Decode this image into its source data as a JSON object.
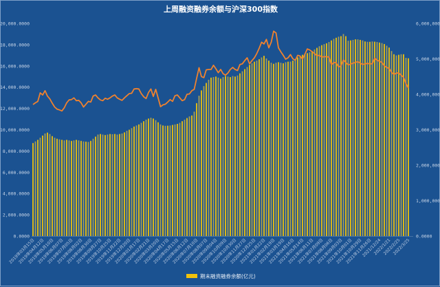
{
  "chart_data": {
    "type": "bar",
    "title": "上周融资融券余额与沪深300指数",
    "colors": {
      "background": "#1b5291",
      "bar": "#f2c20a",
      "bar_alt": "#a99f52",
      "line": "#f0822e",
      "text": "#c9d6e8"
    },
    "left_axis": {
      "ylim": [
        0,
        20000
      ],
      "ticks": [
        "0.0000",
        "2,000.0000",
        "4,000.0000",
        "6,000.0000",
        "8,000.0000",
        "10,000.0000",
        "12,000.0000",
        "14,000.0000",
        "16,000.0000",
        "18,000.0000",
        "20,000.0000"
      ]
    },
    "right_axis": {
      "ylim": [
        0,
        6000000
      ],
      "ticks": [
        "0.0000",
        "1,000,000.0000",
        "2,000,000.0000",
        "3,000,000.0000",
        "4,000,000.0000",
        "5,000,000.0000",
        "6,000,000.0000"
      ]
    },
    "x_tick_labels": [
      "2019年03月15日",
      "2019年04月12日",
      "2019年05月10日",
      "2019年06月07日",
      "2019年07月05日",
      "2019年08月02日",
      "2019年08月30日",
      "2019年09月27日",
      "2019年10月25日",
      "2019年11月22日",
      "2019年12月20日",
      "2020年01月17日",
      "2020年02月21日",
      "2020年03月20日",
      "2020年04月17日",
      "2020年05月15日",
      "2020年06月12日",
      "2020年07月10日",
      "2020年08月07日",
      "2020年09月04日",
      "2020年10月09日",
      "2020年10月30日",
      "2020年11月27日",
      "2020年12月25日",
      "2021年01月22日",
      "2021年02月19日",
      "2021年03月19日",
      "2021年04月16日",
      "2021年05月14日",
      "2021年06月11日",
      "2021年07月09日",
      "2021年08月06日",
      "2021年09月03日",
      "2021年10月01日",
      "2021年10月29日",
      "2021年11月26日",
      "2021/12/24",
      "2022/1/21",
      "2022/2/25",
      "2022/3/25"
    ],
    "x_tick_every": 4,
    "legend": {
      "placement": "bottom",
      "entries": [
        "期末融资融券余额(亿元)"
      ]
    },
    "series": [
      {
        "name": "期末融资融券余额(亿元)",
        "type": "bar",
        "axis": "left",
        "values": [
          8750,
          8900,
          9050,
          9250,
          9450,
          9650,
          9730,
          9600,
          9400,
          9250,
          9150,
          9100,
          9050,
          9000,
          9050,
          9000,
          8950,
          9000,
          9050,
          9000,
          8950,
          8900,
          8880,
          8850,
          8950,
          9150,
          9350,
          9550,
          9600,
          9550,
          9500,
          9550,
          9600,
          9580,
          9600,
          9550,
          9600,
          9650,
          9750,
          9900,
          10000,
          10150,
          10300,
          10400,
          10500,
          10650,
          10800,
          10950,
          11050,
          11130,
          11050,
          10900,
          10700,
          10500,
          10400,
          10370,
          10380,
          10400,
          10450,
          10500,
          10550,
          10650,
          10800,
          10950,
          11100,
          11250,
          11340,
          11700,
          12500,
          13200,
          13700,
          14100,
          14400,
          14700,
          14900,
          14950,
          15000,
          14900,
          14800,
          14950,
          15050,
          15000,
          14950,
          15050,
          15000,
          15100,
          15300,
          15500,
          15700,
          15900,
          16100,
          16250,
          16400,
          16500,
          16630,
          16800,
          16950,
          16700,
          16500,
          16300,
          16200,
          16300,
          16350,
          16300,
          16250,
          16350,
          16400,
          16410,
          16500,
          16650,
          16800,
          16950,
          17050,
          17150,
          17200,
          17280,
          17400,
          17550,
          17700,
          17850,
          17950,
          18050,
          18130,
          18250,
          18400,
          18550,
          18650,
          18750,
          18800,
          19000,
          18800,
          18370,
          18400,
          18450,
          18500,
          18500,
          18450,
          18400,
          18300,
          18270,
          18270,
          18300,
          18280,
          18250,
          18200,
          18150,
          18060,
          17900,
          17730,
          17400,
          17100,
          16990,
          17050,
          17100,
          17100,
          16760,
          16720
        ]
      },
      {
        "name": "沪深300指数",
        "type": "line",
        "axis": "right",
        "values": [
          3710000,
          3760000,
          3800000,
          4040000,
          3980000,
          4100000,
          3950000,
          3870000,
          3750000,
          3640000,
          3580000,
          3560000,
          3530000,
          3620000,
          3760000,
          3840000,
          3850000,
          3900000,
          3820000,
          3830000,
          3760000,
          3640000,
          3720000,
          3800000,
          3780000,
          3950000,
          3980000,
          3900000,
          3840000,
          3820000,
          3890000,
          3860000,
          3900000,
          3950000,
          3980000,
          3900000,
          3860000,
          3830000,
          3900000,
          3960000,
          4020000,
          4030000,
          4150000,
          4160000,
          4150000,
          4020000,
          3930000,
          3880000,
          4050000,
          4150000,
          3940000,
          4140000,
          3900000,
          3650000,
          3700000,
          3720000,
          3780000,
          3850000,
          3800000,
          3960000,
          3980000,
          3900000,
          3820000,
          3850000,
          4000000,
          4010000,
          4100000,
          4140000,
          4450000,
          4750000,
          4500000,
          4470000,
          4690000,
          4700000,
          4700000,
          4820000,
          4720000,
          4610000,
          4700000,
          4580000,
          4540000,
          4600000,
          4700000,
          4760000,
          4700000,
          4670000,
          4840000,
          4860000,
          4950000,
          5030000,
          4860000,
          4950000,
          5030000,
          5150000,
          5300000,
          5470000,
          5420000,
          5550000,
          5310000,
          5470000,
          5780000,
          5730000,
          5310000,
          5200000,
          5100000,
          4990000,
          5030000,
          5120000,
          5000000,
          4960000,
          5100000,
          5080000,
          4990000,
          5130000,
          5280000,
          5250000,
          5200000,
          5150000,
          5090000,
          5100000,
          5050000,
          5060000,
          5060000,
          5050000,
          4830000,
          4900000,
          4890000,
          4770000,
          4800000,
          4970000,
          4900000,
          4830000,
          4850000,
          4880000,
          4900000,
          4920000,
          4880000,
          4840000,
          4860000,
          4870000,
          4860000,
          4860000,
          5020000,
          4960000,
          4930000,
          4900000,
          4800000,
          4760000,
          4730000,
          4620000,
          4560000,
          4600000,
          4600000,
          4540000,
          4480000,
          4300000,
          4170000
        ]
      }
    ]
  }
}
